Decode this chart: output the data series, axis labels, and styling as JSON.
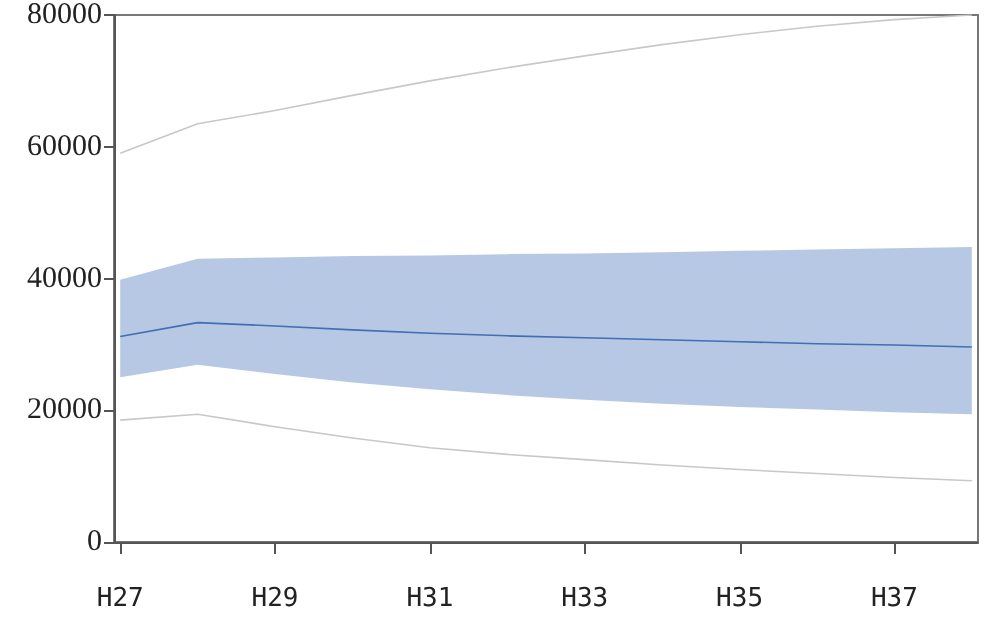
{
  "chart_data": {
    "type": "line",
    "categories": [
      "H27",
      null,
      "H29",
      null,
      "H31",
      null,
      "H33",
      null,
      "H35",
      null,
      "H37",
      null
    ],
    "series": [
      {
        "color": "#c8c8c8",
        "values": [
          59000,
          63500,
          65500,
          67800,
          70000,
          72000,
          73800,
          75500,
          77000,
          78300,
          79300,
          80000
        ]
      },
      {
        "color": "#3f6fb5",
        "values": [
          31200,
          33300,
          32800,
          32200,
          31700,
          31300,
          31000,
          30700,
          30400,
          30100,
          29900,
          29600
        ],
        "lower": [
          25000,
          26900,
          25500,
          24200,
          23200,
          22300,
          21600,
          21000,
          20500,
          20100,
          19700,
          19400
        ],
        "upper": [
          39800,
          43000,
          43200,
          43400,
          43500,
          43700,
          43800,
          44000,
          44200,
          44400,
          44600,
          44800
        ]
      },
      {
        "color": "#c8c8c8",
        "values": [
          18500,
          19400,
          17500,
          15800,
          14300,
          13300,
          12500,
          11700,
          11000,
          10400,
          9800,
          9300
        ]
      }
    ],
    "ylim": [
      0,
      80000
    ],
    "yticks": [
      0,
      20000,
      40000,
      60000,
      80000
    ],
    "grid": false,
    "marker": "none",
    "line_style": "solid"
  }
}
